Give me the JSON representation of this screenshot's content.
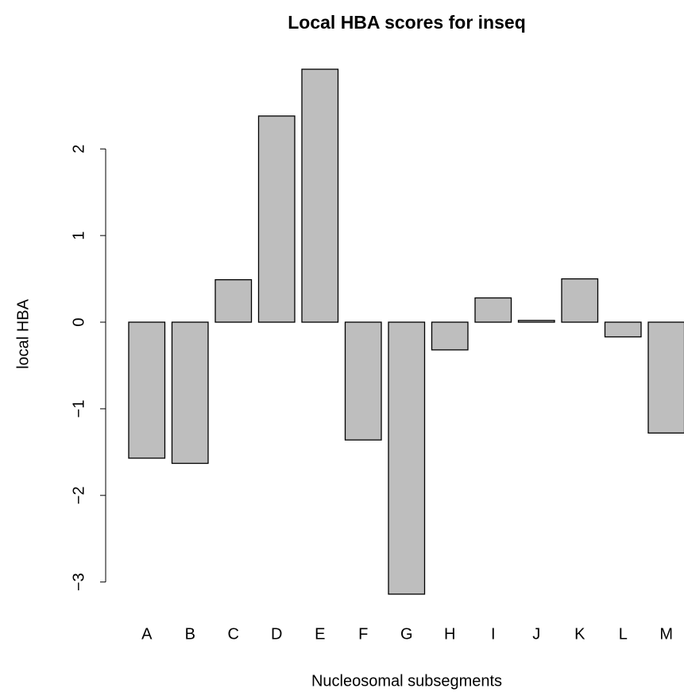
{
  "chart_data": {
    "type": "bar",
    "title": "Local HBA scores for inseq",
    "x_label": "Nucleosomal subsegments",
    "y_label": "local HBA",
    "categories": [
      "A",
      "B",
      "C",
      "D",
      "E",
      "F",
      "G",
      "H",
      "I",
      "J",
      "K",
      "L",
      "M"
    ],
    "values": [
      -1.57,
      -1.63,
      0.49,
      2.38,
      2.92,
      -1.36,
      -3.14,
      -0.32,
      0.28,
      0.02,
      0.5,
      -0.17,
      -1.28
    ],
    "color": "#bebebe",
    "ylim": [
      -3.37,
      3.15
    ],
    "yticks": [
      {
        "value": -3,
        "label": "−3"
      },
      {
        "value": -2,
        "label": "−2"
      },
      {
        "value": -1,
        "label": "−1"
      },
      0,
      1,
      2
    ],
    "grid": false
  }
}
